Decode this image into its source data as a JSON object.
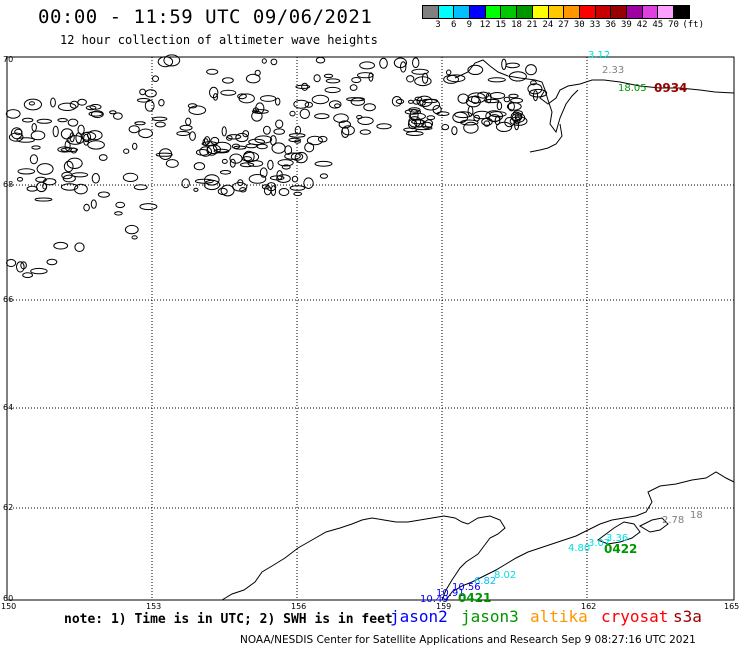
{
  "title": "00:00 - 11:59 UTC 09/06/2021",
  "subtitle": "12 hour collection of altimeter wave heights",
  "scale": {
    "unit": "(ft)",
    "colors": [
      "#808080",
      "#00ffff",
      "#00c0ff",
      "#0000ff",
      "#00ff00",
      "#00c800",
      "#009600",
      "#ffff00",
      "#ffc800",
      "#ff9600",
      "#ff0000",
      "#c80000",
      "#960000",
      "#a000a0",
      "#e040e0",
      "#ffa0ff",
      "#000000"
    ],
    "ticks": [
      "3",
      "6",
      "9",
      "12",
      "15",
      "18",
      "21",
      "24",
      "27",
      "30",
      "33",
      "36",
      "39",
      "42",
      "45",
      "70"
    ]
  },
  "axes": {
    "lat_labels": [
      "70",
      "68",
      "66",
      "64",
      "62",
      "60"
    ],
    "lon_labels": [
      "150",
      "153",
      "156",
      "159",
      "162",
      "165"
    ]
  },
  "observations": [
    {
      "text": "3.12",
      "color": "#00e0e0"
    },
    {
      "text": "2.33",
      "color": "#808080"
    },
    {
      "text": "18.05",
      "color": "#009600"
    },
    {
      "text": "0934",
      "color": "#960000"
    },
    {
      "text": "2.78",
      "color": "#808080"
    },
    {
      "text": "18",
      "color": "#808080"
    },
    {
      "text": "3.36",
      "color": "#00e0e0"
    },
    {
      "text": "3.07",
      "color": "#00e0e0"
    },
    {
      "text": "4.80",
      "color": "#00e0e0"
    },
    {
      "text": "0422",
      "color": "#009600"
    },
    {
      "text": "8.02",
      "color": "#00e0e0"
    },
    {
      "text": "6.82",
      "color": "#00c0ff"
    },
    {
      "text": "10.56",
      "color": "#0000ff"
    },
    {
      "text": "10.91",
      "color": "#0000ff"
    },
    {
      "text": "10.49",
      "color": "#0000ff"
    },
    {
      "text": "0421",
      "color": "#009600"
    }
  ],
  "note": "note: 1) Time is in UTC; 2) SWH is in feet",
  "legend": {
    "jason2": {
      "label": "jason2",
      "color": "#0000ff"
    },
    "jason3": {
      "label": "jason3",
      "color": "#009600"
    },
    "altika": {
      "label": "altika",
      "color": "#ff9600"
    },
    "cryosat": {
      "label": "cryosat",
      "color": "#ff0000"
    },
    "s3a": {
      "label": "s3a",
      "color": "#960000"
    }
  },
  "footer": "NOAA/NESDIS Center for Satellite Applications and Research   Sep  9 08:27:16 UTC 2021"
}
